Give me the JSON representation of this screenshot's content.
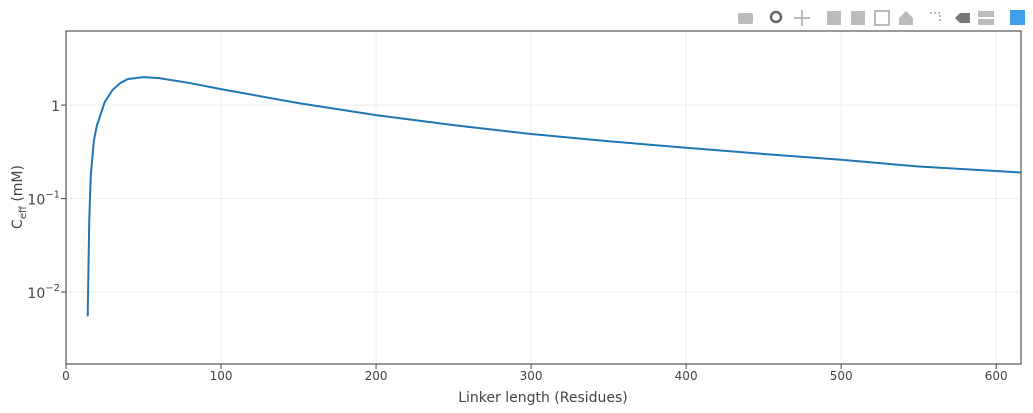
{
  "chart_data": {
    "type": "line",
    "x_label": "Linker length (Residues)",
    "y_label": [
      "C",
      "eff",
      " (mM)"
    ],
    "log_y": true,
    "grid": true,
    "xlim": [
      0,
      616
    ],
    "ylim": [
      0.0017,
      6.2
    ],
    "xticks": [
      0,
      100,
      200,
      300,
      400,
      500,
      600
    ],
    "yticks": [
      {
        "value": 1,
        "label": "1"
      },
      {
        "value": 0.1,
        "label": "10",
        "exponent": "−1"
      },
      {
        "value": 0.01,
        "label": "10",
        "exponent": "−2"
      }
    ],
    "series": [
      {
        "color": "#1f77b4",
        "x": [
          14,
          15,
          16,
          18,
          20,
          25,
          30,
          35,
          40,
          50,
          60,
          80,
          100,
          150,
          200,
          250,
          300,
          350,
          400,
          450,
          500,
          550,
          616
        ],
        "values": [
          0.0055,
          0.059,
          0.18,
          0.42,
          0.61,
          1.08,
          1.45,
          1.72,
          1.9,
          1.99,
          1.94,
          1.72,
          1.48,
          1.05,
          0.78,
          0.61,
          0.49,
          0.41,
          0.35,
          0.3,
          0.26,
          0.22,
          0.19
        ]
      }
    ]
  }
}
